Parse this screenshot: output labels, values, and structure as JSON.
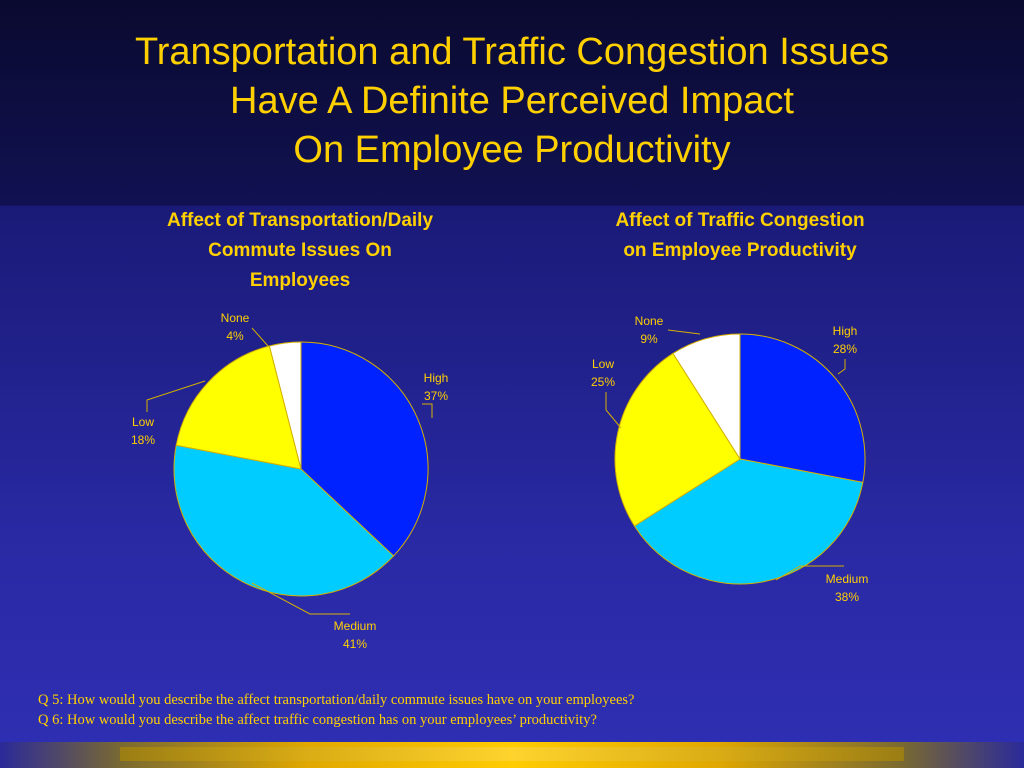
{
  "slide": {
    "title_lines": [
      "Transportation and Traffic Congestion Issues",
      "Have A Definite Perceived Impact",
      "On Employee Productivity"
    ],
    "footnotes": [
      "Q 5:  How would you describe the affect transportation/daily commute issues have on your employees?",
      "Q 6:  How would you describe the affect traffic congestion has on your employees’ productivity?"
    ]
  },
  "colors": {
    "title_text": "#ffd000",
    "High": "#0022ff",
    "Medium": "#00ccff",
    "Low": "#ffff00",
    "None": "#ffffff",
    "slice_border": "#d4b000"
  },
  "chart_data": [
    {
      "type": "pie",
      "title_lines": [
        "Affect of Transportation/Daily",
        "Commute Issues On",
        "Employees"
      ],
      "categories": [
        "High",
        "Medium",
        "Low",
        "None"
      ],
      "values": [
        37,
        41,
        18,
        4
      ],
      "labels": [
        {
          "name": "High",
          "value": "37%"
        },
        {
          "name": "Medium",
          "value": "41%"
        },
        {
          "name": "Low",
          "value": "18%"
        },
        {
          "name": "None",
          "value": "4%"
        }
      ]
    },
    {
      "type": "pie",
      "title_lines": [
        "Affect of Traffic Congestion",
        "on Employee Productivity"
      ],
      "categories": [
        "High",
        "Medium",
        "Low",
        "None"
      ],
      "values": [
        28,
        38,
        25,
        9
      ],
      "labels": [
        {
          "name": "High",
          "value": "28%"
        },
        {
          "name": "Medium",
          "value": "38%"
        },
        {
          "name": "Low",
          "value": "25%"
        },
        {
          "name": "None",
          "value": "9%"
        }
      ]
    }
  ]
}
